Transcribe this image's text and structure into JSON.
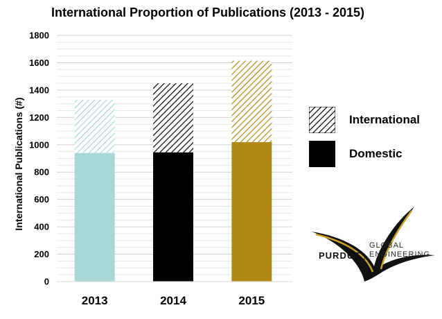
{
  "chart_data": {
    "type": "bar",
    "stacked": true,
    "title": "International Proportion of Publications (2013 - 2015)",
    "xlabel": "",
    "ylabel": "International Publications (#)",
    "categories": [
      "2013",
      "2014",
      "2015"
    ],
    "series": [
      {
        "name": "Domestic",
        "values": [
          940,
          945,
          1020
        ]
      },
      {
        "name": "International",
        "values": [
          390,
          505,
          595
        ]
      }
    ],
    "bar_colors": [
      "#a8d9d8",
      "#000000",
      "#b08a13"
    ],
    "ylim": [
      0,
      1800
    ],
    "yticks": [
      "0",
      "200",
      "400",
      "600",
      "800",
      "1000",
      "1200",
      "1400",
      "1600",
      "1800"
    ],
    "grid": true,
    "legend_position": "right",
    "legend": [
      "International",
      "Domestic"
    ]
  },
  "logo": {
    "wordmark": "PURDUE",
    "line1": "GLOBAL",
    "line2": "ENGINEERING",
    "colors": {
      "dark": "#111111",
      "gold": "#c9a227"
    }
  }
}
